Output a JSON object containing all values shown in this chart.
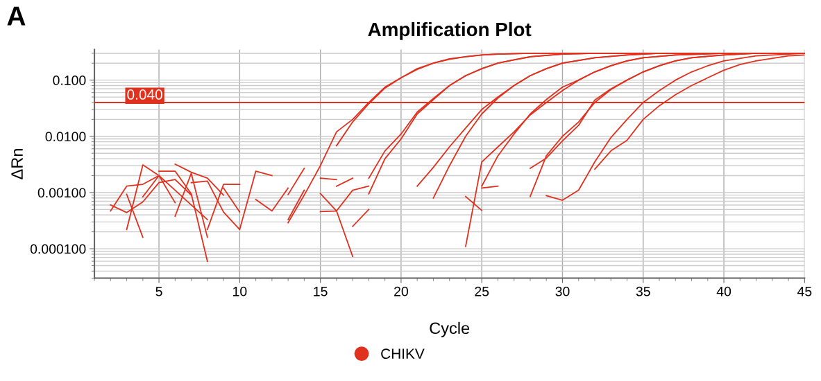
{
  "chart_data": {
    "type": "line",
    "title": "Amplification Plot",
    "xlabel": "Cycle",
    "ylabel": "ΔRn",
    "annotations": [
      "A"
    ],
    "log": "y",
    "grid": true,
    "legend": "bottom",
    "line_style": "solid",
    "xlim": [
      1,
      45
    ],
    "xticks": [
      5,
      10,
      15,
      20,
      25,
      30,
      35,
      40,
      45
    ],
    "ylim": [
      3e-05,
      0.35
    ],
    "yticks": [
      {
        "value": 0.0001,
        "label": "0.000100"
      },
      {
        "value": 0.001,
        "label": "0.00100"
      },
      {
        "value": 0.01,
        "label": "0.0100"
      },
      {
        "value": 0.1,
        "label": "0.100"
      }
    ],
    "ref_lines": [
      {
        "axis": "y",
        "value": 0.04,
        "label": "0.040",
        "color": "#e0301e"
      }
    ],
    "series": [
      {
        "name": "CHIKV",
        "color": "#e0301e",
        "x": [
          13,
          14,
          15,
          16,
          17,
          18,
          19,
          20,
          21,
          22,
          23,
          24,
          25,
          26,
          28,
          30,
          35,
          40,
          45
        ],
        "values": [
          0.00029,
          0.0009,
          0.003,
          0.012,
          0.02,
          0.04,
          0.075,
          0.11,
          0.16,
          0.2,
          0.24,
          0.26,
          0.28,
          0.29,
          0.3,
          0.3,
          0.3,
          0.3,
          0.3
        ]
      },
      {
        "color": "#e0301e",
        "x": [
          16,
          17,
          18,
          19,
          20,
          21,
          22,
          23,
          24,
          25,
          26,
          28,
          30,
          35,
          40,
          45
        ],
        "values": [
          0.0068,
          0.018,
          0.038,
          0.072,
          0.11,
          0.155,
          0.2,
          0.235,
          0.26,
          0.28,
          0.29,
          0.3,
          0.3,
          0.3,
          0.3,
          0.3
        ]
      },
      {
        "color": "#e0301e",
        "x": [
          18,
          19,
          20,
          21,
          22,
          23,
          24,
          25,
          26,
          27,
          28,
          30,
          32,
          35,
          40,
          45
        ],
        "values": [
          0.00095,
          0.004,
          0.009,
          0.025,
          0.045,
          0.08,
          0.12,
          0.16,
          0.2,
          0.23,
          0.26,
          0.29,
          0.3,
          0.3,
          0.3,
          0.3
        ]
      },
      {
        "color": "#e0301e",
        "x": [
          18,
          19,
          20,
          21,
          22,
          23,
          24,
          25,
          26,
          27,
          28,
          30,
          32,
          35,
          40,
          45
        ],
        "values": [
          0.0018,
          0.0055,
          0.011,
          0.027,
          0.047,
          0.08,
          0.12,
          0.16,
          0.2,
          0.23,
          0.26,
          0.29,
          0.3,
          0.3,
          0.3,
          0.3
        ]
      },
      {
        "color": "#e0301e",
        "x": [
          21,
          22,
          23,
          24,
          25,
          26,
          27,
          28,
          29,
          30,
          32,
          34,
          36,
          40,
          45
        ],
        "values": [
          0.0013,
          0.0028,
          0.0065,
          0.014,
          0.03,
          0.05,
          0.08,
          0.12,
          0.16,
          0.2,
          0.25,
          0.28,
          0.3,
          0.3,
          0.3
        ]
      },
      {
        "color": "#e0301e",
        "x": [
          22,
          23,
          24,
          25,
          26,
          27,
          28,
          29,
          30,
          32,
          34,
          36,
          40,
          45
        ],
        "values": [
          0.0008,
          0.003,
          0.01,
          0.025,
          0.048,
          0.08,
          0.12,
          0.16,
          0.2,
          0.25,
          0.28,
          0.3,
          0.3,
          0.3
        ]
      },
      {
        "color": "#e0301e",
        "x": [
          24,
          25,
          26,
          27,
          28,
          29,
          30,
          31,
          32,
          33,
          34,
          35,
          37,
          40,
          45
        ],
        "values": [
          0.00011,
          0.0035,
          0.0065,
          0.012,
          0.024,
          0.04,
          0.065,
          0.1,
          0.14,
          0.18,
          0.22,
          0.25,
          0.28,
          0.3,
          0.3
        ]
      },
      {
        "color": "#e0301e",
        "x": [
          25,
          26,
          27,
          28,
          29,
          30,
          31,
          32,
          33,
          34,
          35,
          37,
          40,
          45
        ],
        "values": [
          0.0013,
          0.0045,
          0.011,
          0.025,
          0.045,
          0.075,
          0.1,
          0.14,
          0.18,
          0.22,
          0.25,
          0.28,
          0.3,
          0.3
        ]
      },
      {
        "color": "#e0301e",
        "x": [
          28,
          29,
          30,
          31,
          32,
          33,
          34,
          35,
          36,
          37,
          38,
          40,
          42,
          45
        ],
        "values": [
          0.0027,
          0.0041,
          0.0083,
          0.0157,
          0.044,
          0.07,
          0.1,
          0.14,
          0.18,
          0.22,
          0.25,
          0.28,
          0.3,
          0.3
        ]
      },
      {
        "color": "#e0301e",
        "x": [
          28,
          29,
          30,
          31,
          32,
          33,
          34,
          35,
          36,
          37,
          38,
          40,
          42,
          45
        ],
        "values": [
          0.00085,
          0.0045,
          0.01,
          0.018,
          0.04,
          0.068,
          0.1,
          0.14,
          0.18,
          0.22,
          0.25,
          0.28,
          0.3,
          0.3
        ]
      },
      {
        "color": "#e0301e",
        "x": [
          29,
          30,
          31,
          32,
          33,
          34,
          35,
          36,
          37,
          38,
          39,
          40,
          42,
          45
        ],
        "values": [
          0.00088,
          0.00073,
          0.0011,
          0.0035,
          0.0095,
          0.02,
          0.04,
          0.065,
          0.1,
          0.14,
          0.18,
          0.22,
          0.27,
          0.3
        ]
      },
      {
        "color": "#e0301e",
        "x": [
          32,
          33,
          34,
          35,
          36,
          37,
          38,
          39,
          40,
          41,
          42,
          44,
          45
        ],
        "values": [
          0.0026,
          0.0055,
          0.0085,
          0.02,
          0.035,
          0.055,
          0.08,
          0.11,
          0.15,
          0.19,
          0.22,
          0.27,
          0.28
        ]
      },
      {
        "color": "#e0301e",
        "x": [
          2,
          3,
          4,
          5
        ],
        "values": [
          0.00047,
          0.0013,
          0.0014,
          0.002
        ]
      },
      {
        "color": "#e0301e",
        "x": [
          2,
          3,
          4,
          5,
          6,
          7
        ],
        "values": [
          0.0006,
          0.00044,
          0.00068,
          0.0015,
          0.0017,
          0.0009
        ]
      },
      {
        "color": "#e0301e",
        "x": [
          3,
          4
        ],
        "values": [
          0.00093,
          0.00016
        ]
      },
      {
        "color": "#e0301e",
        "x": [
          3,
          4,
          5,
          6
        ],
        "values": [
          0.00022,
          0.0031,
          0.002,
          0.00066
        ]
      },
      {
        "color": "#e0301e",
        "x": [
          4,
          5,
          6,
          7,
          8
        ],
        "values": [
          0.00084,
          0.002,
          0.0011,
          0.0006,
          0.00033
        ]
      },
      {
        "color": "#e0301e",
        "x": [
          5,
          6,
          7,
          8
        ],
        "values": [
          0.0024,
          0.0024,
          0.00095,
          6e-05
        ]
      },
      {
        "color": "#e0301e",
        "x": [
          6,
          7,
          8,
          9
        ],
        "values": [
          0.0032,
          0.0023,
          0.0018,
          0.0009
        ]
      },
      {
        "color": "#e0301e",
        "x": [
          6,
          7,
          8
        ],
        "values": [
          0.00038,
          0.0022,
          0.00016
        ]
      },
      {
        "color": "#e0301e",
        "x": [
          7,
          8,
          9,
          10,
          11,
          12
        ],
        "values": [
          0.0015,
          0.0016,
          0.00045,
          0.00022,
          0.0024,
          0.002
        ]
      },
      {
        "color": "#e0301e",
        "x": [
          8,
          9,
          10
        ],
        "values": [
          0.00022,
          0.0014,
          0.0014
        ]
      },
      {
        "color": "#e0301e",
        "x": [
          9,
          10
        ],
        "values": [
          0.0012,
          0.00045
        ]
      },
      {
        "color": "#e0301e",
        "x": [
          11,
          12,
          13
        ],
        "values": [
          0.00075,
          0.00047,
          0.0012
        ]
      },
      {
        "color": "#e0301e",
        "x": [
          13,
          14
        ],
        "values": [
          0.00092,
          0.0027
        ]
      },
      {
        "color": "#e0301e",
        "x": [
          13,
          14
        ],
        "values": [
          0.00033,
          0.0011
        ]
      },
      {
        "color": "#e0301e",
        "x": [
          15,
          16
        ],
        "values": [
          0.0018,
          0.0017
        ]
      },
      {
        "color": "#e0301e",
        "x": [
          16,
          17
        ],
        "values": [
          0.0013,
          0.0018
        ]
      },
      {
        "color": "#e0301e",
        "x": [
          15,
          16,
          17
        ],
        "values": [
          0.00096,
          0.00047,
          7.3e-05
        ]
      },
      {
        "color": "#e0301e",
        "x": [
          15,
          16,
          17,
          18
        ],
        "values": [
          0.00046,
          0.00047,
          0.0011,
          0.0013
        ]
      },
      {
        "color": "#e0301e",
        "x": [
          17,
          18
        ],
        "values": [
          0.00025,
          0.0005
        ]
      },
      {
        "color": "#e0301e",
        "x": [
          24,
          25
        ],
        "values": [
          0.00085,
          0.00048
        ]
      },
      {
        "color": "#e0301e",
        "x": [
          25,
          26
        ],
        "values": [
          0.0012,
          0.0013
        ]
      }
    ]
  }
}
